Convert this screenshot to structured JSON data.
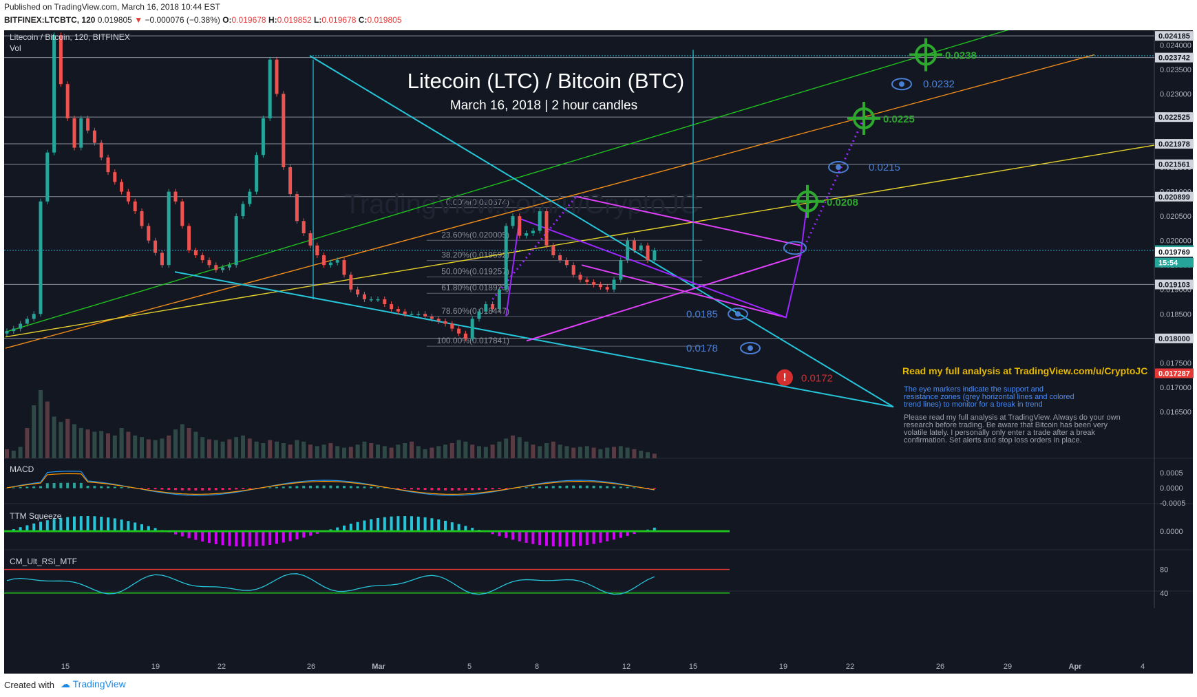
{
  "header": {
    "published": "Published on TradingView.com, March 16, 2018 10:44 EST",
    "symbol": "BITFINEX:LTCBTC, 120",
    "last": "0.019805",
    "change": "−0.000076 (−0.38%)",
    "o_label": "O:",
    "o_value": "0.019678",
    "h_label": "H:",
    "h_value": "0.019852",
    "l_label": "L:",
    "l_value": "0.019678",
    "c_label": "C:",
    "c_value": "0.019805"
  },
  "footer": {
    "created_with": "Created with",
    "brand": "TradingView"
  },
  "colors": {
    "bg": "#131722",
    "cyan": "#26c6da",
    "magenta": "#e040fb",
    "purple": "#9c27ff",
    "green": "#1fbf1f",
    "orange": "#f08c1a",
    "yellow": "#e6d22a",
    "blue": "#4a7fd4",
    "up": "#26a69a",
    "down": "#ef5350",
    "target": "#2ea82e",
    "stop": "#d32f2f"
  },
  "chart_data": {
    "type": "candlestick",
    "title": "Litecoin (LTC) / Bitcoin (BTC)",
    "subtitle": "March 16, 2018 | 2 hour candles",
    "pane_label": "Litecoin / Bitcoin, 120, BITFINEX",
    "vol_label": "Vol",
    "watermark": "TradingView.com/u/CryptoJC",
    "ylim": [
      0.016,
      0.0243
    ],
    "xaxis_labels": [
      "15",
      "19",
      "22",
      "26",
      "Mar",
      "5",
      "8",
      "12",
      "15",
      "19",
      "22",
      "26",
      "29",
      "Apr",
      "4"
    ],
    "price_ticks": [
      "0.024000",
      "0.023500",
      "0.023000",
      "0.022500",
      "0.022000",
      "0.021500",
      "0.021000",
      "0.020500",
      "0.020000",
      "0.019500",
      "0.019000",
      "0.018500",
      "0.018000",
      "0.017500",
      "0.017000",
      "0.016500"
    ],
    "price_tick_values": [
      0.024,
      0.0235,
      0.023,
      0.0225,
      0.022,
      0.0215,
      0.021,
      0.0205,
      0.02,
      0.0195,
      0.019,
      0.0185,
      0.018,
      0.0175,
      0.017,
      0.0165
    ],
    "level_badges": [
      {
        "label": "0.024185",
        "value": 0.024185
      },
      {
        "label": "0.023742",
        "value": 0.023742
      },
      {
        "label": "0.022525",
        "value": 0.022525
      },
      {
        "label": "0.021978",
        "value": 0.021978
      },
      {
        "label": "0.021561",
        "value": 0.021561
      },
      {
        "label": "0.020899",
        "value": 0.020899
      },
      {
        "label": "0.019805",
        "value": 0.019805,
        "style": "current"
      },
      {
        "label": "15:54",
        "value": 0.01955,
        "style": "timer"
      },
      {
        "label": "0.019769",
        "value": 0.019769,
        "style": "white"
      },
      {
        "label": "0.019103",
        "value": 0.019103
      },
      {
        "label": "0.018000",
        "value": 0.018
      },
      {
        "label": "0.017287",
        "value": 0.017287,
        "style": "red"
      }
    ],
    "fib_levels": [
      {
        "label": "0.00%(0.020674)",
        "value": 0.020674
      },
      {
        "label": "23.60%(0.020005)",
        "value": 0.020005
      },
      {
        "label": "38.20%(0.019592)",
        "value": 0.019592
      },
      {
        "label": "50.00%(0.019257)",
        "value": 0.019257
      },
      {
        "label": "61.80%(0.018923)",
        "value": 0.018923
      },
      {
        "label": "78.60%(0.018447)",
        "value": 0.018447
      },
      {
        "label": "100.00%(0.017841)",
        "value": 0.017841
      }
    ],
    "targets": [
      {
        "label": "0.0238",
        "value": 0.0238
      },
      {
        "label": "0.0225",
        "value": 0.0225
      },
      {
        "label": "0.0208",
        "value": 0.0208
      }
    ],
    "eye_levels": [
      {
        "label": "0.0232",
        "value": 0.0232
      },
      {
        "label": "0.0215",
        "value": 0.0215
      },
      {
        "label": "0.0185",
        "value": 0.0185
      },
      {
        "label": "0.0178",
        "value": 0.0178
      }
    ],
    "stop": {
      "label": "0.0172",
      "value": 0.0172
    },
    "notes": {
      "headline": "Read my full analysis at TradingView.com/u/CryptoJC",
      "eye_note": [
        "The eye markers indicate the support and",
        "resistance zones (grey horizontal lines and colored",
        "trend lines) to monitor for a break in trend"
      ],
      "disclaimer": [
        "Please read my full analysis at TradingView. Always do your own",
        "research before trading. Be aware that Bitcoin has been very",
        "volatile lately. I personally only enter a trade after a break",
        "confirmation. Set alerts and stop loss orders in place."
      ]
    },
    "price_path": [
      [
        0,
        0.0181
      ],
      [
        2,
        0.0182
      ],
      [
        5,
        0.0185
      ],
      [
        6,
        0.0208
      ],
      [
        7,
        0.0218
      ],
      [
        8,
        0.0242
      ],
      [
        9,
        0.0232
      ],
      [
        10,
        0.0225
      ],
      [
        11,
        0.0219
      ],
      [
        12,
        0.0225
      ],
      [
        14,
        0.022
      ],
      [
        16,
        0.0214
      ],
      [
        18,
        0.021
      ],
      [
        20,
        0.0206
      ],
      [
        22,
        0.02
      ],
      [
        24,
        0.0195
      ],
      [
        25,
        0.021
      ],
      [
        26,
        0.0208
      ],
      [
        28,
        0.0198
      ],
      [
        30,
        0.0196
      ],
      [
        32,
        0.0194
      ],
      [
        34,
        0.0195
      ],
      [
        35,
        0.0205
      ],
      [
        37,
        0.021
      ],
      [
        39,
        0.0225
      ],
      [
        40,
        0.0237
      ],
      [
        41,
        0.023
      ],
      [
        42,
        0.0215
      ],
      [
        44,
        0.0204
      ],
      [
        46,
        0.0199
      ],
      [
        48,
        0.0195
      ],
      [
        50,
        0.0196
      ],
      [
        52,
        0.019
      ],
      [
        54,
        0.0188
      ],
      [
        56,
        0.0188
      ],
      [
        58,
        0.0186
      ],
      [
        60,
        0.0185
      ],
      [
        62,
        0.0185
      ],
      [
        64,
        0.0184
      ],
      [
        66,
        0.0183
      ],
      [
        68,
        0.0181
      ],
      [
        69,
        0.018
      ],
      [
        70,
        0.0184
      ],
      [
        72,
        0.0187
      ],
      [
        73,
        0.0186
      ],
      [
        74,
        0.019
      ],
      [
        75,
        0.0203
      ],
      [
        76,
        0.0205
      ],
      [
        77,
        0.0201
      ],
      [
        79,
        0.0202
      ],
      [
        80,
        0.0206
      ],
      [
        81,
        0.0199
      ],
      [
        82,
        0.0197
      ],
      [
        84,
        0.0195
      ],
      [
        85,
        0.0193
      ],
      [
        86,
        0.0192
      ],
      [
        88,
        0.0191
      ],
      [
        90,
        0.019
      ],
      [
        91,
        0.0192
      ],
      [
        92,
        0.0196
      ],
      [
        93,
        0.02
      ],
      [
        94,
        0.0198
      ],
      [
        95,
        0.0199
      ],
      [
        96,
        0.0196
      ],
      [
        97,
        0.0198
      ]
    ],
    "volume": [
      12,
      10,
      15,
      40,
      70,
      90,
      75,
      55,
      48,
      52,
      45,
      40,
      38,
      35,
      36,
      33,
      30,
      40,
      35,
      30,
      28,
      25,
      24,
      26,
      30,
      38,
      45,
      40,
      35,
      28,
      25,
      24,
      22,
      25,
      28,
      30,
      26,
      22,
      20,
      24,
      22,
      20,
      18,
      24,
      22,
      18,
      16,
      18,
      20,
      16,
      14,
      15,
      18,
      22,
      20,
      18,
      16,
      14,
      18,
      20,
      22,
      16,
      12,
      14,
      16,
      18,
      20,
      24,
      22,
      18,
      16,
      15,
      18,
      22,
      26,
      30,
      28,
      22,
      18,
      16,
      20,
      22,
      18,
      16,
      14,
      15,
      16,
      14,
      12,
      14,
      15,
      16,
      14,
      12,
      10,
      8,
      6
    ],
    "macd_label": "MACD",
    "macd_ticks": [
      "0.0005",
      "0.0000",
      "-0.0005"
    ],
    "macd_values": [
      0.0005,
      0.0,
      -0.0005
    ],
    "ttm_label": "TTM Squeeze",
    "ttm_ticks": [
      "0.0000"
    ],
    "rsi_label": "CM_Ult_RSI_MTF",
    "rsi_ticks": [
      "80",
      "40"
    ],
    "rsi_values": [
      80,
      40
    ]
  }
}
